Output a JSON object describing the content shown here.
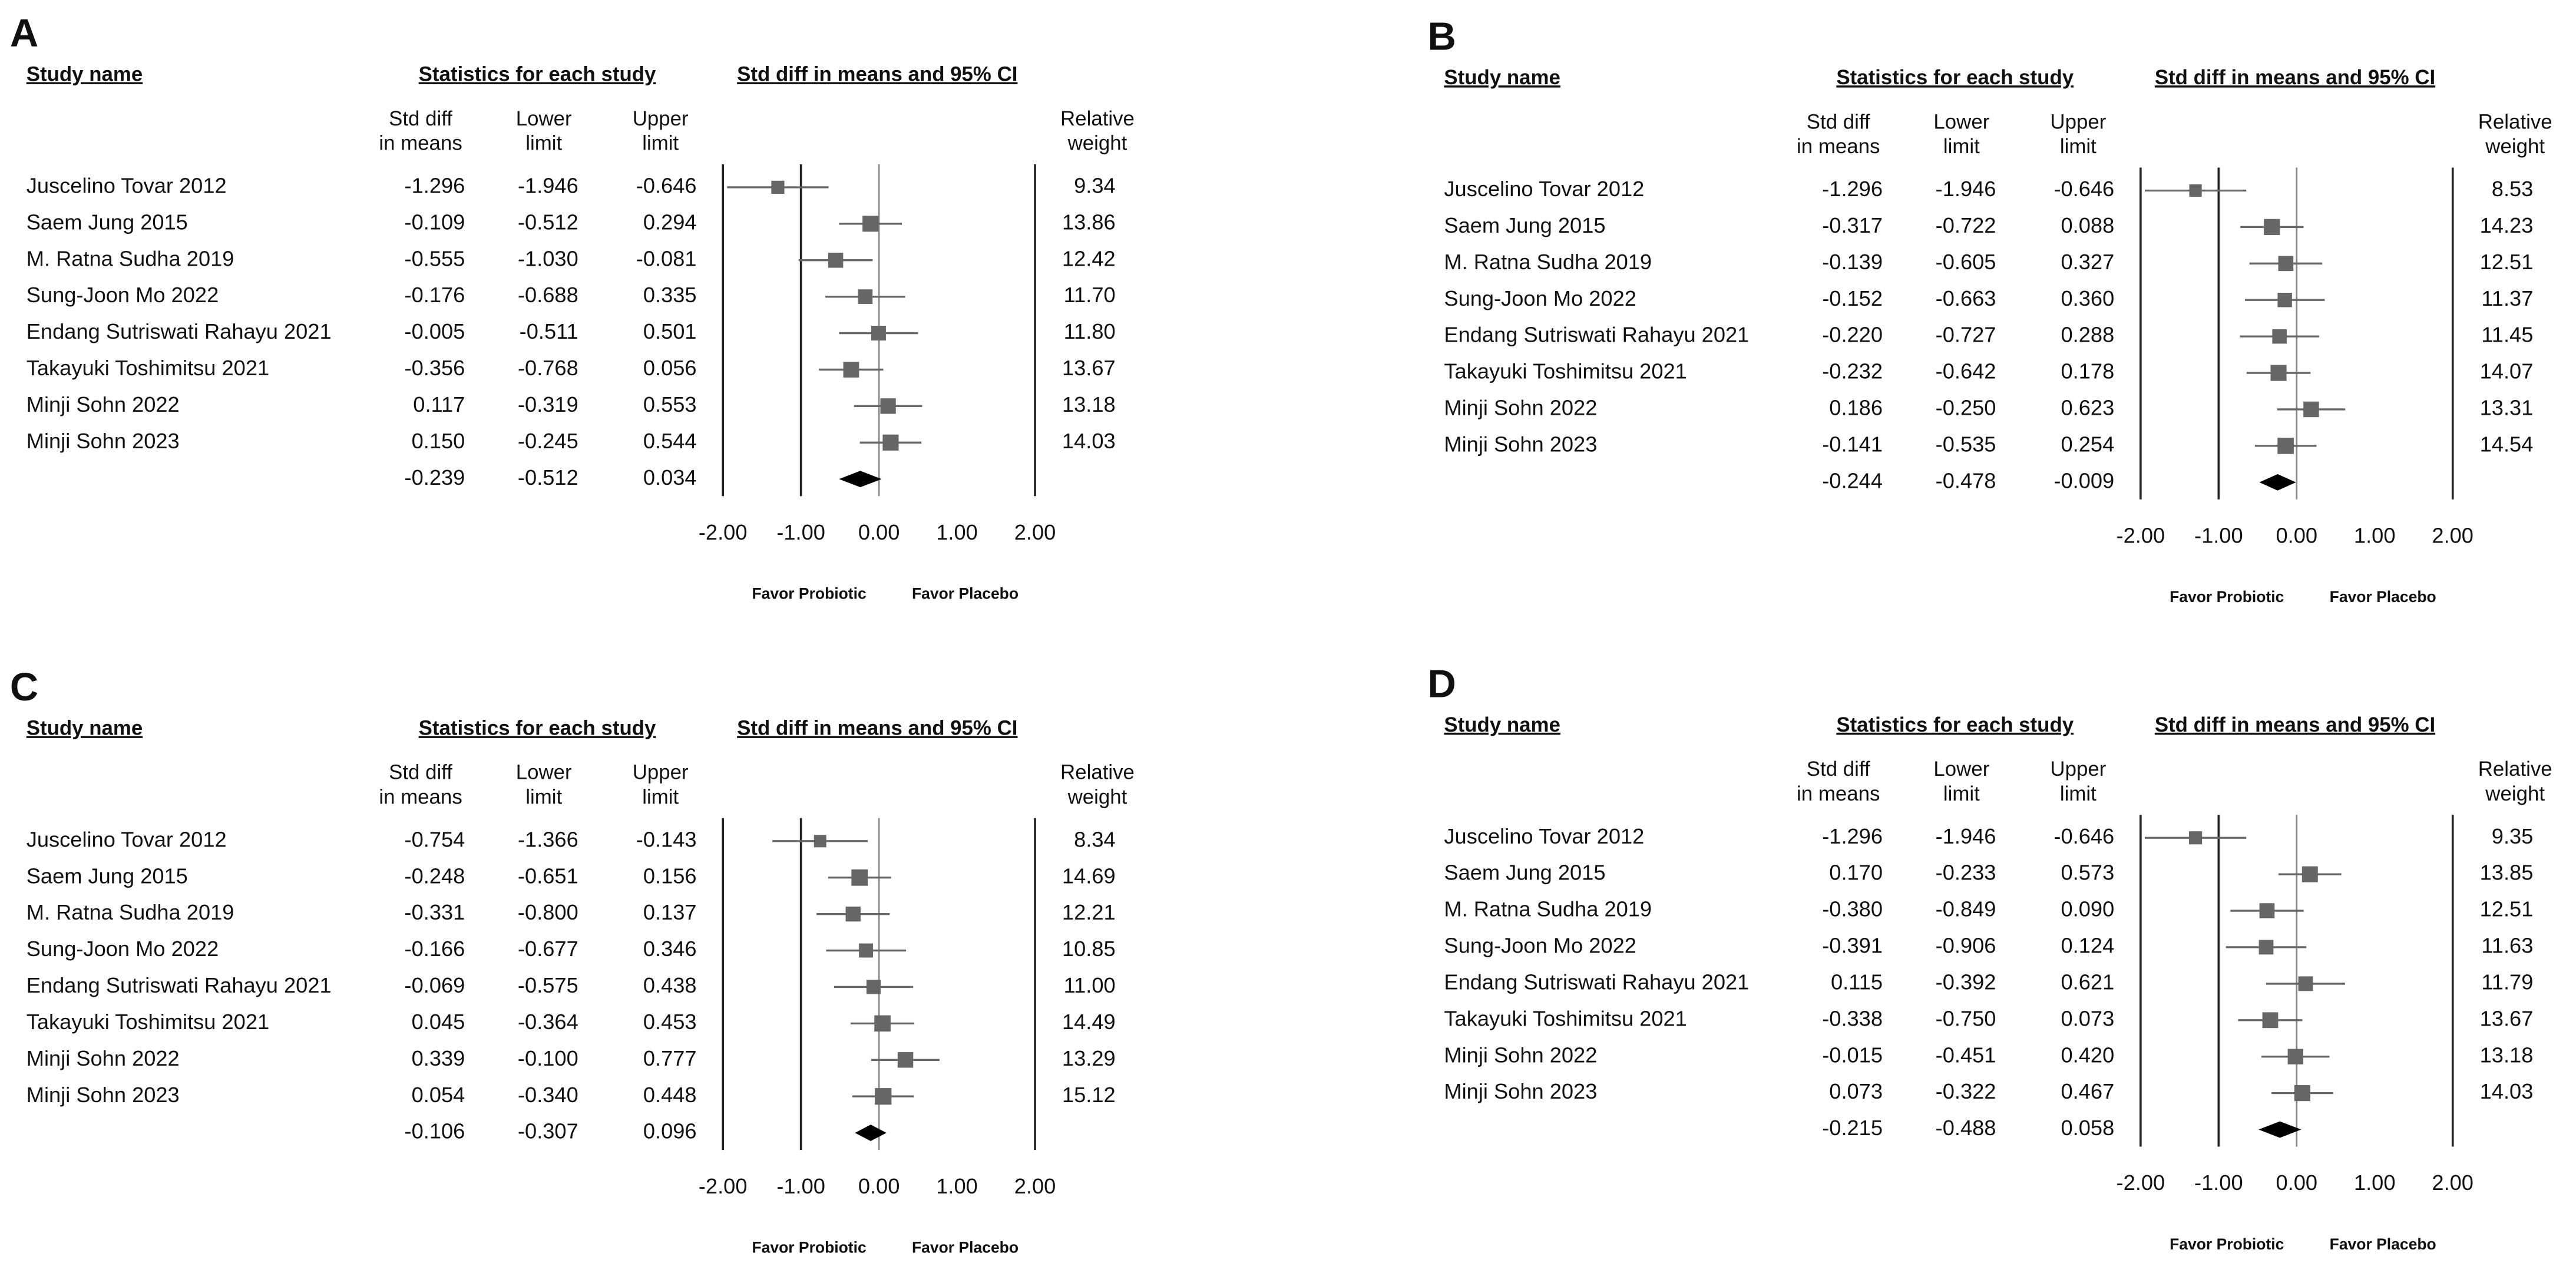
{
  "chart_data": [
    {
      "type": "forest",
      "panel": "A",
      "study_header": "Study name",
      "statistics_header": "Statistics for each study",
      "title": "Std diff in means and 95% CI",
      "categories": [
        "Juscelino Tovar 2012",
        "Saem Jung 2015",
        "M. Ratna Sudha 2019",
        "Sung-Joon Mo 2022",
        "Endang Sutriswati Rahayu 2021",
        "Takayuki Toshimitsu 2021",
        "Minji Sohn 2022",
        "Minji Sohn 2023"
      ],
      "columns": {
        "effect": {
          "header": [
            "Std diff",
            "in means"
          ],
          "values": [
            -1.296,
            -0.109,
            -0.555,
            -0.176,
            -0.005,
            -0.356,
            0.117,
            0.15
          ],
          "value_labels": [
            "-1.296",
            "-0.109",
            "-0.555",
            "-0.176",
            "-0.005",
            "-0.356",
            "0.117",
            "0.150"
          ]
        },
        "lower": {
          "header": [
            "Lower",
            "limit"
          ],
          "values": [
            -1.946,
            -0.512,
            -1.03,
            -0.688,
            -0.511,
            -0.768,
            -0.319,
            -0.245
          ],
          "value_labels": [
            "-1.946",
            "-0.512",
            "-1.030",
            "-0.688",
            "-0.511",
            "-0.768",
            "-0.319",
            "-0.245"
          ]
        },
        "upper": {
          "header": [
            "Upper",
            "limit"
          ],
          "values": [
            -0.646,
            0.294,
            -0.081,
            0.335,
            0.501,
            0.056,
            0.553,
            0.544
          ],
          "value_labels": [
            "-0.646",
            "0.294",
            "-0.081",
            "0.335",
            "0.501",
            "0.056",
            "0.553",
            "0.544"
          ]
        },
        "weight": {
          "header": [
            "Relative",
            "weight"
          ],
          "values": [
            9.34,
            13.86,
            12.42,
            11.7,
            11.8,
            13.67,
            13.18,
            14.03
          ],
          "value_labels": [
            "9.34",
            "13.86",
            "12.42",
            "11.70",
            "11.80",
            "13.67",
            "13.18",
            "14.03"
          ]
        }
      },
      "summary": {
        "values": [
          -0.239,
          -0.512,
          0.034
        ],
        "value_labels": [
          "-0.239",
          "-0.512",
          "0.034"
        ]
      },
      "xlim": [
        -2,
        2
      ],
      "xticks": [
        {
          "value": -2,
          "label": "-2.00"
        },
        {
          "value": -1,
          "label": "-1.00"
        },
        {
          "value": 0,
          "label": "0.00"
        },
        {
          "value": 1,
          "label": "1.00"
        },
        {
          "value": 2,
          "label": "2.00"
        }
      ],
      "reference_lines": [
        -1,
        0
      ],
      "annotations": [
        "Favor Probiotic",
        "Favor Placebo"
      ],
      "color": "#666666"
    },
    {
      "type": "forest",
      "panel": "B",
      "study_header": "Study name",
      "statistics_header": "Statistics for each study",
      "title": "Std diff in means and 95% CI",
      "categories": [
        "Juscelino Tovar 2012",
        "Saem Jung 2015",
        "M. Ratna Sudha 2019",
        "Sung-Joon Mo 2022",
        "Endang Sutriswati Rahayu 2021",
        "Takayuki Toshimitsu 2021",
        "Minji Sohn 2022",
        "Minji Sohn 2023"
      ],
      "columns": {
        "effect": {
          "header": [
            "Std diff",
            "in means"
          ],
          "values": [
            -1.296,
            -0.317,
            -0.139,
            -0.152,
            -0.22,
            -0.232,
            0.186,
            -0.141
          ],
          "value_labels": [
            "-1.296",
            "-0.317",
            "-0.139",
            "-0.152",
            "-0.220",
            "-0.232",
            "0.186",
            "-0.141"
          ]
        },
        "lower": {
          "header": [
            "Lower",
            "limit"
          ],
          "values": [
            -1.946,
            -0.722,
            -0.605,
            -0.663,
            -0.727,
            -0.642,
            -0.25,
            -0.535
          ],
          "value_labels": [
            "-1.946",
            "-0.722",
            "-0.605",
            "-0.663",
            "-0.727",
            "-0.642",
            "-0.250",
            "-0.535"
          ]
        },
        "upper": {
          "header": [
            "Upper",
            "limit"
          ],
          "values": [
            -0.646,
            0.088,
            0.327,
            0.36,
            0.288,
            0.178,
            0.623,
            0.254
          ],
          "value_labels": [
            "-0.646",
            "0.088",
            "0.327",
            "0.360",
            "0.288",
            "0.178",
            "0.623",
            "0.254"
          ]
        },
        "weight": {
          "header": [
            "Relative",
            "weight"
          ],
          "values": [
            8.53,
            14.23,
            12.51,
            11.37,
            11.45,
            14.07,
            13.31,
            14.54
          ],
          "value_labels": [
            "8.53",
            "14.23",
            "12.51",
            "11.37",
            "11.45",
            "14.07",
            "13.31",
            "14.54"
          ]
        }
      },
      "summary": {
        "values": [
          -0.244,
          -0.478,
          -0.009
        ],
        "value_labels": [
          "-0.244",
          "-0.478",
          "-0.009"
        ]
      },
      "xlim": [
        -2,
        2
      ],
      "xticks": [
        {
          "value": -2,
          "label": "-2.00"
        },
        {
          "value": -1,
          "label": "-1.00"
        },
        {
          "value": 0,
          "label": "0.00"
        },
        {
          "value": 1,
          "label": "1.00"
        },
        {
          "value": 2,
          "label": "2.00"
        }
      ],
      "reference_lines": [
        -1,
        0
      ],
      "annotations": [
        "Favor Probiotic",
        "Favor Placebo"
      ],
      "color": "#666666"
    },
    {
      "type": "forest",
      "panel": "C",
      "study_header": "Study name",
      "statistics_header": "Statistics for each study",
      "title": "Std diff in means and 95% CI",
      "categories": [
        "Juscelino Tovar 2012",
        "Saem Jung 2015",
        "M. Ratna Sudha 2019",
        "Sung-Joon Mo 2022",
        "Endang Sutriswati Rahayu 2021",
        "Takayuki Toshimitsu 2021",
        "Minji Sohn 2022",
        "Minji Sohn 2023"
      ],
      "columns": {
        "effect": {
          "header": [
            "Std diff",
            "in means"
          ],
          "values": [
            -0.754,
            -0.248,
            -0.331,
            -0.166,
            -0.069,
            0.045,
            0.339,
            0.054
          ],
          "value_labels": [
            "-0.754",
            "-0.248",
            "-0.331",
            "-0.166",
            "-0.069",
            "0.045",
            "0.339",
            "0.054"
          ]
        },
        "lower": {
          "header": [
            "Lower",
            "limit"
          ],
          "values": [
            -1.366,
            -0.651,
            -0.8,
            -0.677,
            -0.575,
            -0.364,
            -0.1,
            -0.34
          ],
          "value_labels": [
            "-1.366",
            "-0.651",
            "-0.800",
            "-0.677",
            "-0.575",
            "-0.364",
            "-0.100",
            "-0.340"
          ]
        },
        "upper": {
          "header": [
            "Upper",
            "limit"
          ],
          "values": [
            -0.143,
            0.156,
            0.137,
            0.346,
            0.438,
            0.453,
            0.777,
            0.448
          ],
          "value_labels": [
            "-0.143",
            "0.156",
            "0.137",
            "0.346",
            "0.438",
            "0.453",
            "0.777",
            "0.448"
          ]
        },
        "weight": {
          "header": [
            "Relative",
            "weight"
          ],
          "values": [
            8.34,
            14.69,
            12.21,
            10.85,
            11.0,
            14.49,
            13.29,
            15.12
          ],
          "value_labels": [
            "8.34",
            "14.69",
            "12.21",
            "10.85",
            "11.00",
            "14.49",
            "13.29",
            "15.12"
          ]
        }
      },
      "summary": {
        "values": [
          -0.106,
          -0.307,
          0.096
        ],
        "value_labels": [
          "-0.106",
          "-0.307",
          "0.096"
        ]
      },
      "xlim": [
        -2,
        2
      ],
      "xticks": [
        {
          "value": -2,
          "label": "-2.00"
        },
        {
          "value": -1,
          "label": "-1.00"
        },
        {
          "value": 0,
          "label": "0.00"
        },
        {
          "value": 1,
          "label": "1.00"
        },
        {
          "value": 2,
          "label": "2.00"
        }
      ],
      "reference_lines": [
        -1,
        0
      ],
      "annotations": [
        "Favor Probiotic",
        "Favor Placebo"
      ],
      "color": "#666666"
    },
    {
      "type": "forest",
      "panel": "D",
      "study_header": "Study name",
      "statistics_header": "Statistics for each study",
      "title": "Std diff in means and 95% CI",
      "categories": [
        "Juscelino Tovar 2012",
        "Saem Jung 2015",
        "M. Ratna Sudha 2019",
        "Sung-Joon Mo 2022",
        "Endang Sutriswati Rahayu 2021",
        "Takayuki Toshimitsu 2021",
        "Minji Sohn 2022",
        "Minji Sohn 2023"
      ],
      "columns": {
        "effect": {
          "header": [
            "Std diff",
            "in means"
          ],
          "values": [
            -1.296,
            0.17,
            -0.38,
            -0.391,
            0.115,
            -0.338,
            -0.015,
            0.073
          ],
          "value_labels": [
            "-1.296",
            "0.170",
            "-0.380",
            "-0.391",
            "0.115",
            "-0.338",
            "-0.015",
            "0.073"
          ]
        },
        "lower": {
          "header": [
            "Lower",
            "limit"
          ],
          "values": [
            -1.946,
            -0.233,
            -0.849,
            -0.906,
            -0.392,
            -0.75,
            -0.451,
            -0.322
          ],
          "value_labels": [
            "-1.946",
            "-0.233",
            "-0.849",
            "-0.906",
            "-0.392",
            "-0.750",
            "-0.451",
            "-0.322"
          ]
        },
        "upper": {
          "header": [
            "Upper",
            "limit"
          ],
          "values": [
            -0.646,
            0.573,
            0.09,
            0.124,
            0.621,
            0.073,
            0.42,
            0.467
          ],
          "value_labels": [
            "-0.646",
            "0.573",
            "0.090",
            "0.124",
            "0.621",
            "0.073",
            "0.420",
            "0.467"
          ]
        },
        "weight": {
          "header": [
            "Relative",
            "weight"
          ],
          "values": [
            9.35,
            13.85,
            12.51,
            11.63,
            11.79,
            13.67,
            13.18,
            14.03
          ],
          "value_labels": [
            "9.35",
            "13.85",
            "12.51",
            "11.63",
            "11.79",
            "13.67",
            "13.18",
            "14.03"
          ]
        }
      },
      "summary": {
        "values": [
          -0.215,
          -0.488,
          0.058
        ],
        "value_labels": [
          "-0.215",
          "-0.488",
          "0.058"
        ]
      },
      "xlim": [
        -2,
        2
      ],
      "xticks": [
        {
          "value": -2,
          "label": "-2.00"
        },
        {
          "value": -1,
          "label": "-1.00"
        },
        {
          "value": 0,
          "label": "0.00"
        },
        {
          "value": 1,
          "label": "1.00"
        },
        {
          "value": 2,
          "label": "2.00"
        }
      ],
      "reference_lines": [
        -1,
        0
      ],
      "annotations": [
        "Favor Probiotic",
        "Favor Placebo"
      ],
      "color": "#666666"
    }
  ]
}
